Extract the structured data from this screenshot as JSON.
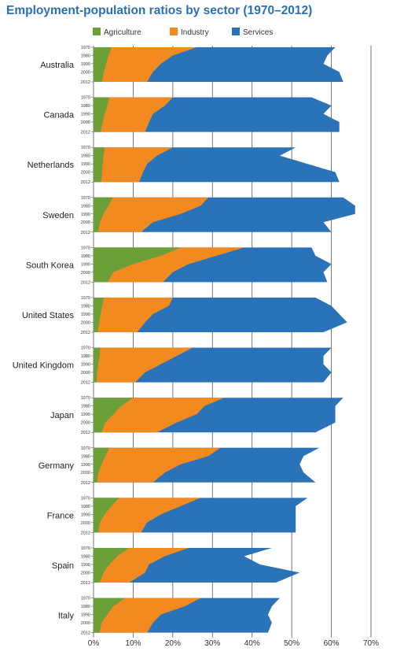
{
  "chart_data": {
    "type": "area",
    "title": "Employment-population ratios by sector (1970–2012)",
    "xlim": [
      0,
      70
    ],
    "x_ticks": [
      "0%",
      "10%",
      "20%",
      "30%",
      "40%",
      "50%",
      "60%",
      "70%"
    ],
    "year_ticks": [
      "1970",
      "1980",
      "1990",
      "2000",
      "2012"
    ],
    "colors": {
      "Agriculture": "#6a9f3a",
      "Industry": "#f28a20",
      "Services": "#2a73b8"
    },
    "legend": [
      "Agriculture",
      "Industry",
      "Services"
    ],
    "years": [
      1970,
      1980,
      1990,
      2000,
      2012
    ],
    "panels": [
      {
        "country": "Australia",
        "agriculture": [
          4.5,
          3.8,
          3.2,
          2.6,
          2.1
        ],
        "industry": [
          26,
          20,
          17,
          15,
          13.5
        ],
        "total": [
          61,
          59,
          58,
          62,
          63
        ]
      },
      {
        "country": "Canada",
        "agriculture": [
          4,
          3.5,
          2.8,
          2.3,
          1.8
        ],
        "industry": [
          20,
          18,
          15,
          14,
          13
        ],
        "total": [
          55,
          60,
          58,
          62,
          62
        ]
      },
      {
        "country": "Netherlands",
        "agriculture": [
          2.8,
          2.5,
          2.3,
          2.1,
          1.9
        ],
        "industry": [
          20,
          16,
          13.5,
          12.5,
          11.5
        ],
        "total": [
          51,
          47,
          54,
          61,
          62
        ]
      },
      {
        "country": "Sweden",
        "agriculture": [
          4.8,
          3.8,
          2.5,
          1.6,
          1.2
        ],
        "industry": [
          29,
          27,
          22,
          15,
          12
        ],
        "total": [
          63,
          66,
          66,
          58,
          60
        ]
      },
      {
        "country": "South Korea",
        "agriculture": [
          22,
          17,
          10,
          5,
          3.5
        ],
        "industry": [
          38,
          31,
          24,
          20,
          17.5
        ],
        "total": [
          55,
          56,
          60,
          58,
          59
        ]
      },
      {
        "country": "United States",
        "agriculture": [
          2.6,
          2.2,
          1.8,
          1.4,
          1.1
        ],
        "industry": [
          20,
          19,
          15,
          13,
          11
        ],
        "total": [
          56,
          60,
          62,
          64,
          58
        ]
      },
      {
        "country": "United Kingdom",
        "agriculture": [
          1.7,
          1.5,
          1.2,
          0.9,
          0.8
        ],
        "industry": [
          25,
          21,
          17,
          13,
          10.5
        ],
        "total": [
          60,
          58,
          58,
          60,
          58
        ]
      },
      {
        "country": "Japan",
        "agriculture": [
          10,
          7,
          5,
          3,
          2
        ],
        "industry": [
          33,
          28,
          26,
          21,
          16
        ],
        "total": [
          63,
          61,
          61,
          61,
          56
        ]
      },
      {
        "country": "Germany",
        "agriculture": [
          4,
          3,
          2,
          1.2,
          0.9
        ],
        "industry": [
          32,
          29,
          22,
          18,
          15
        ],
        "total": [
          57,
          53,
          52,
          53,
          56
        ]
      },
      {
        "country": "France",
        "agriculture": [
          6.5,
          4.5,
          2.8,
          1.6,
          1.2
        ],
        "industry": [
          27,
          22,
          17,
          13.5,
          12
        ],
        "total": [
          54,
          51,
          51,
          51,
          51
        ]
      },
      {
        "country": "Spain",
        "agriculture": [
          9,
          6,
          4,
          2.5,
          1.5
        ],
        "industry": [
          24,
          18,
          14,
          13,
          9
        ],
        "total": [
          45,
          38,
          42,
          52,
          46
        ]
      },
      {
        "country": "Italy",
        "agriculture": [
          8,
          5,
          3.5,
          2,
          1.5
        ],
        "industry": [
          27,
          23,
          17,
          15,
          13.5
        ],
        "total": [
          47,
          45,
          44,
          45,
          44
        ]
      }
    ]
  }
}
